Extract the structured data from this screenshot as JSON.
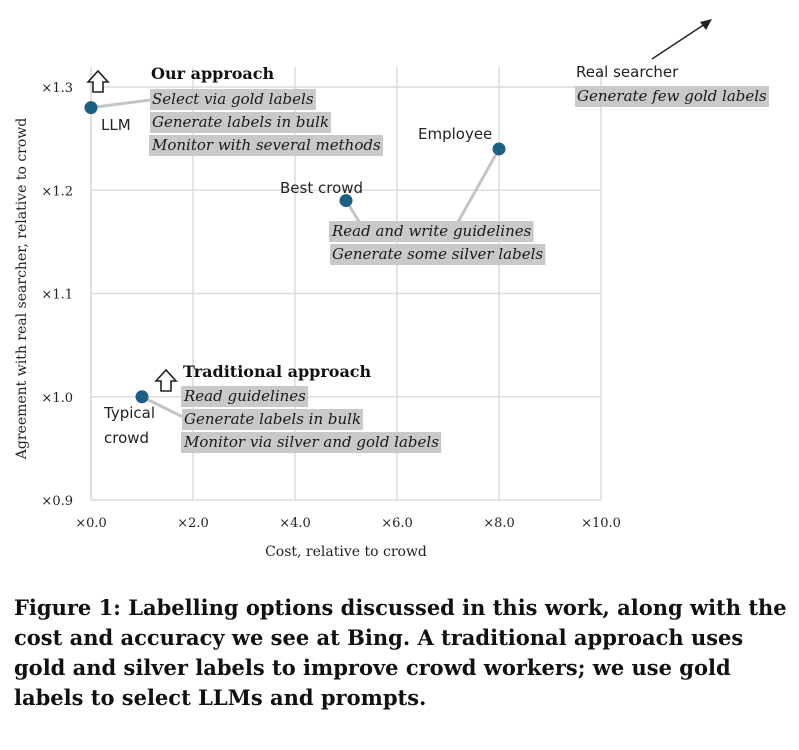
{
  "chart_data": {
    "type": "scatter",
    "xlabel": "Cost, relative to crowd",
    "ylabel": "Agreement with real searcher, relative to crowd",
    "xlim": [
      0,
      10
    ],
    "ylim": [
      0.9,
      1.3
    ],
    "grid": true,
    "x_ticks": [
      {
        "value": 0,
        "label": "×0.0"
      },
      {
        "value": 2,
        "label": "×2.0"
      },
      {
        "value": 4,
        "label": "×4.0"
      },
      {
        "value": 6,
        "label": "×6.0"
      },
      {
        "value": 8,
        "label": "×8.0"
      },
      {
        "value": 10,
        "label": "×10.0"
      }
    ],
    "y_ticks": [
      {
        "value": 0.9,
        "label": "×0.9"
      },
      {
        "value": 1.0,
        "label": "×1.0"
      },
      {
        "value": 1.1,
        "label": "×1.1"
      },
      {
        "value": 1.2,
        "label": "×1.2"
      },
      {
        "value": 1.3,
        "label": "×1.3"
      }
    ],
    "points": [
      {
        "name": "LLM",
        "x": 0,
        "y": 1.28
      },
      {
        "name": "Typical crowd",
        "lines": [
          "Typical",
          "crowd"
        ],
        "x": 1,
        "y": 1.0
      },
      {
        "name": "Best crowd",
        "x": 5,
        "y": 1.19
      },
      {
        "name": "Employee",
        "x": 8,
        "y": 1.24
      }
    ],
    "annotations": [
      {
        "heading": "Our approach",
        "lines": [
          "Select via gold labels",
          "Generate labels in bulk",
          "Monitor with several methods"
        ]
      },
      {
        "heading": "Traditional approach",
        "lines": [
          "Read guidelines",
          "Generate labels in bulk",
          "Monitor via silver and gold labels"
        ]
      },
      {
        "heading": "",
        "lines": [
          "Read and write guidelines",
          "Generate some silver labels"
        ]
      },
      {
        "heading": "Real searcher",
        "lines": [
          "Generate few gold labels"
        ]
      }
    ]
  },
  "caption": "Figure 1: Labelling options discussed in this work, along with the cost and accuracy we see at Bing. A traditional approach uses gold and silver labels to improve crowd workers; we use gold labels to select LLMs and prompts.",
  "colors": {
    "point": "#1b5f82",
    "grid": "#dcdcdc",
    "highlight": "#c9c9c9",
    "connector": "#c4c4c4",
    "text": "#222222"
  }
}
